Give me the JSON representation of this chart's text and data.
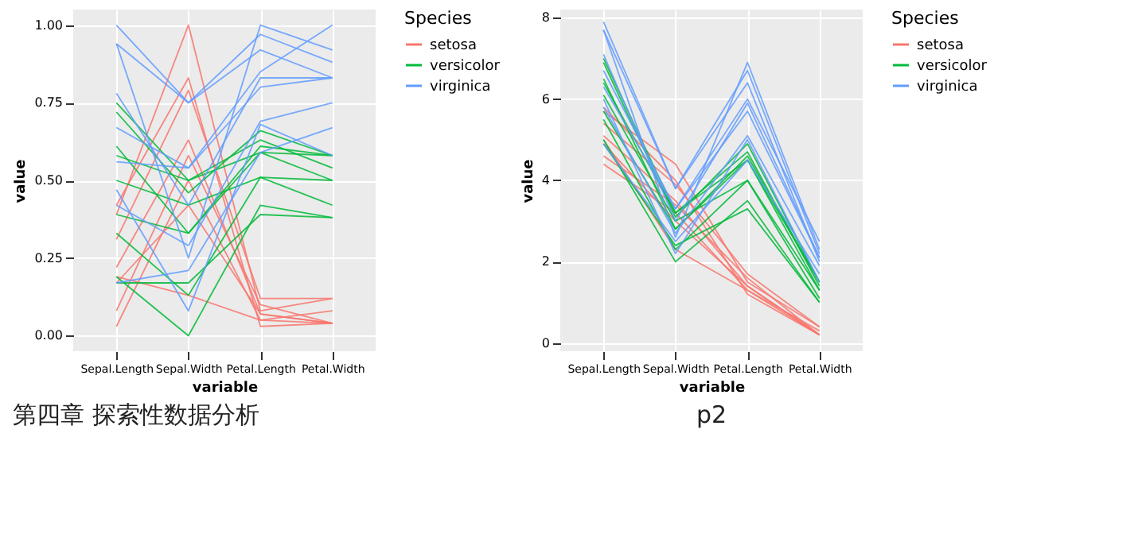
{
  "chart_data": [
    {
      "type": "line",
      "categories": [
        "Sepal.Length",
        "Sepal.Width",
        "Petal.Length",
        "Petal.Width"
      ],
      "xlabel": "variable",
      "ylabel": "value",
      "legend_title": "Species",
      "legend": "right",
      "grid": true,
      "ylim": [
        -0.05,
        1.05
      ],
      "yticks": [
        {
          "value": 0,
          "label": "0.00"
        },
        {
          "value": 0.25,
          "label": "0.25"
        },
        {
          "value": 0.5,
          "label": "0.50"
        },
        {
          "value": 0.75,
          "label": "0.75"
        },
        {
          "value": 1,
          "label": "1.00"
        }
      ],
      "annotations": [
        "第四章 探索性数据分析"
      ],
      "series": [
        {
          "name": "setosa",
          "color": "#f8766d",
          "values": [
            0.22,
            0.63,
            0.07,
            0.04
          ]
        },
        {
          "color": "#f8766d",
          "values": [
            0.17,
            0.42,
            0.07,
            0.04
          ]
        },
        {
          "color": "#f8766d",
          "values": [
            0.03,
            0.5,
            0.05,
            0.04
          ]
        },
        {
          "color": "#f8766d",
          "values": [
            0.31,
            0.79,
            0.12,
            0.12
          ]
        },
        {
          "color": "#f8766d",
          "values": [
            0.39,
            1.0,
            0.08,
            0.12
          ]
        },
        {
          "color": "#f8766d",
          "values": [
            0.08,
            0.58,
            0.1,
            0.04
          ]
        },
        {
          "color": "#f8766d",
          "values": [
            0.42,
            0.83,
            0.03,
            0.04
          ]
        },
        {
          "color": "#f8766d",
          "values": [
            0.19,
            0.13,
            0.05,
            0.08
          ]
        },
        {
          "name": "versicolor",
          "color": "#00ba38",
          "values": [
            0.75,
            0.5,
            0.63,
            0.54
          ]
        },
        {
          "color": "#00ba38",
          "values": [
            0.58,
            0.5,
            0.59,
            0.58
          ]
        },
        {
          "color": "#00ba38",
          "values": [
            0.72,
            0.46,
            0.66,
            0.58
          ]
        },
        {
          "color": "#00ba38",
          "values": [
            0.33,
            0.13,
            0.51,
            0.5
          ]
        },
        {
          "color": "#00ba38",
          "values": [
            0.61,
            0.33,
            0.61,
            0.58
          ]
        },
        {
          "color": "#00ba38",
          "values": [
            0.39,
            0.33,
            0.59,
            0.5
          ]
        },
        {
          "color": "#00ba38",
          "values": [
            0.17,
            0.17,
            0.39,
            0.38
          ]
        },
        {
          "color": "#00ba38",
          "values": [
            0.19,
            0.0,
            0.42,
            0.38
          ]
        },
        {
          "color": "#00ba38",
          "values": [
            0.5,
            0.42,
            0.51,
            0.42
          ]
        },
        {
          "name": "virginica",
          "color": "#619cff",
          "values": [
            0.56,
            0.54,
            0.85,
            1.0
          ]
        },
        {
          "color": "#619cff",
          "values": [
            0.42,
            0.29,
            0.69,
            0.75
          ]
        },
        {
          "color": "#619cff",
          "values": [
            0.78,
            0.42,
            0.83,
            0.83
          ]
        },
        {
          "color": "#619cff",
          "values": [
            0.94,
            0.75,
            0.97,
            0.88
          ]
        },
        {
          "color": "#619cff",
          "values": [
            0.17,
            0.21,
            0.59,
            0.67
          ]
        },
        {
          "color": "#619cff",
          "values": [
            0.94,
            0.25,
            1.0,
            0.92
          ]
        },
        {
          "color": "#619cff",
          "values": [
            0.67,
            0.54,
            0.8,
            0.83
          ]
        },
        {
          "color": "#619cff",
          "values": [
            1.0,
            0.75,
            0.92,
            0.83
          ]
        },
        {
          "color": "#619cff",
          "values": [
            0.47,
            0.08,
            0.68,
            0.58
          ]
        }
      ]
    },
    {
      "type": "line",
      "categories": [
        "Sepal.Length",
        "Sepal.Width",
        "Petal.Length",
        "Petal.Width"
      ],
      "xlabel": "variable",
      "ylabel": "value",
      "legend_title": "Species",
      "legend": "right",
      "grid": true,
      "ylim": [
        -0.2,
        8.2
      ],
      "yticks": [
        0,
        2,
        4,
        6,
        8
      ],
      "annotations": [
        "p2"
      ],
      "series": [
        {
          "name": "setosa",
          "color": "#f8766d",
          "values": [
            5.1,
            3.5,
            1.4,
            0.2
          ]
        },
        {
          "color": "#f8766d",
          "values": [
            4.9,
            3.0,
            1.4,
            0.2
          ]
        },
        {
          "color": "#f8766d",
          "values": [
            4.4,
            3.2,
            1.3,
            0.2
          ]
        },
        {
          "color": "#f8766d",
          "values": [
            5.4,
            3.9,
            1.7,
            0.4
          ]
        },
        {
          "color": "#f8766d",
          "values": [
            5.7,
            4.4,
            1.5,
            0.4
          ]
        },
        {
          "color": "#f8766d",
          "values": [
            4.6,
            3.4,
            1.6,
            0.2
          ]
        },
        {
          "color": "#f8766d",
          "values": [
            5.8,
            4.0,
            1.2,
            0.2
          ]
        },
        {
          "color": "#f8766d",
          "values": [
            5.0,
            2.3,
            1.3,
            0.3
          ]
        },
        {
          "name": "versicolor",
          "color": "#00ba38",
          "values": [
            7.0,
            3.2,
            4.7,
            1.4
          ]
        },
        {
          "color": "#00ba38",
          "values": [
            6.4,
            3.2,
            4.5,
            1.5
          ]
        },
        {
          "color": "#00ba38",
          "values": [
            6.9,
            3.1,
            4.9,
            1.5
          ]
        },
        {
          "color": "#00ba38",
          "values": [
            5.5,
            2.3,
            4.0,
            1.3
          ]
        },
        {
          "color": "#00ba38",
          "values": [
            6.5,
            2.8,
            4.6,
            1.5
          ]
        },
        {
          "color": "#00ba38",
          "values": [
            5.7,
            2.8,
            4.5,
            1.3
          ]
        },
        {
          "color": "#00ba38",
          "values": [
            4.9,
            2.4,
            3.3,
            1.0
          ]
        },
        {
          "color": "#00ba38",
          "values": [
            5.0,
            2.0,
            3.5,
            1.0
          ]
        },
        {
          "color": "#00ba38",
          "values": [
            6.1,
            3.0,
            4.0,
            1.1
          ]
        },
        {
          "name": "virginica",
          "color": "#619cff",
          "values": [
            6.3,
            3.3,
            6.0,
            2.5
          ]
        },
        {
          "color": "#619cff",
          "values": [
            5.8,
            2.7,
            5.1,
            1.9
          ]
        },
        {
          "color": "#619cff",
          "values": [
            7.1,
            3.0,
            5.9,
            2.1
          ]
        },
        {
          "color": "#619cff",
          "values": [
            7.7,
            3.8,
            6.7,
            2.2
          ]
        },
        {
          "color": "#619cff",
          "values": [
            4.9,
            2.5,
            4.5,
            1.7
          ]
        },
        {
          "color": "#619cff",
          "values": [
            7.7,
            2.6,
            6.9,
            2.3
          ]
        },
        {
          "color": "#619cff",
          "values": [
            6.7,
            3.3,
            5.7,
            2.1
          ]
        },
        {
          "color": "#619cff",
          "values": [
            7.9,
            3.8,
            6.4,
            2.0
          ]
        },
        {
          "color": "#619cff",
          "values": [
            6.0,
            2.2,
            5.0,
            1.5
          ]
        }
      ]
    }
  ]
}
